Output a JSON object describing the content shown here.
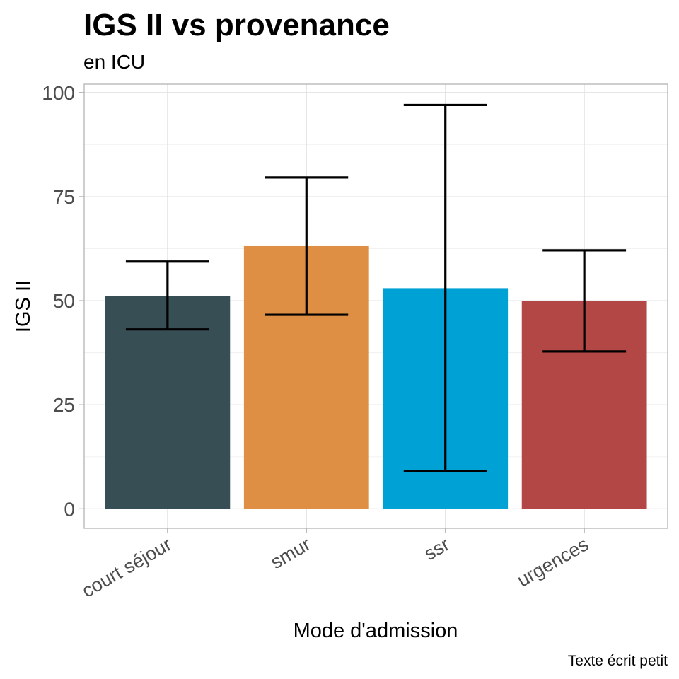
{
  "chart_data": {
    "type": "bar",
    "title": "IGS II vs provenance",
    "subtitle": "en ICU",
    "xlabel": "Mode d'admission",
    "ylabel": "IGS II",
    "caption": "Texte écrit petit",
    "categories": [
      "court séjour",
      "smur",
      "ssr",
      "urgences"
    ],
    "values": [
      51.2,
      63.1,
      53.0,
      50.0
    ],
    "error_low": [
      43.1,
      46.6,
      9.0,
      37.8
    ],
    "error_high": [
      59.4,
      79.6,
      97.0,
      62.1
    ],
    "colors": [
      "#374e55",
      "#df8f44",
      "#00a1d5",
      "#b24745"
    ],
    "yticks": [
      0,
      25,
      50,
      75,
      100
    ],
    "ytick_labels": [
      "0",
      "25",
      "50",
      "75",
      "100"
    ],
    "ylim": [
      -4.7,
      102
    ],
    "grid": true,
    "legend": "none"
  }
}
